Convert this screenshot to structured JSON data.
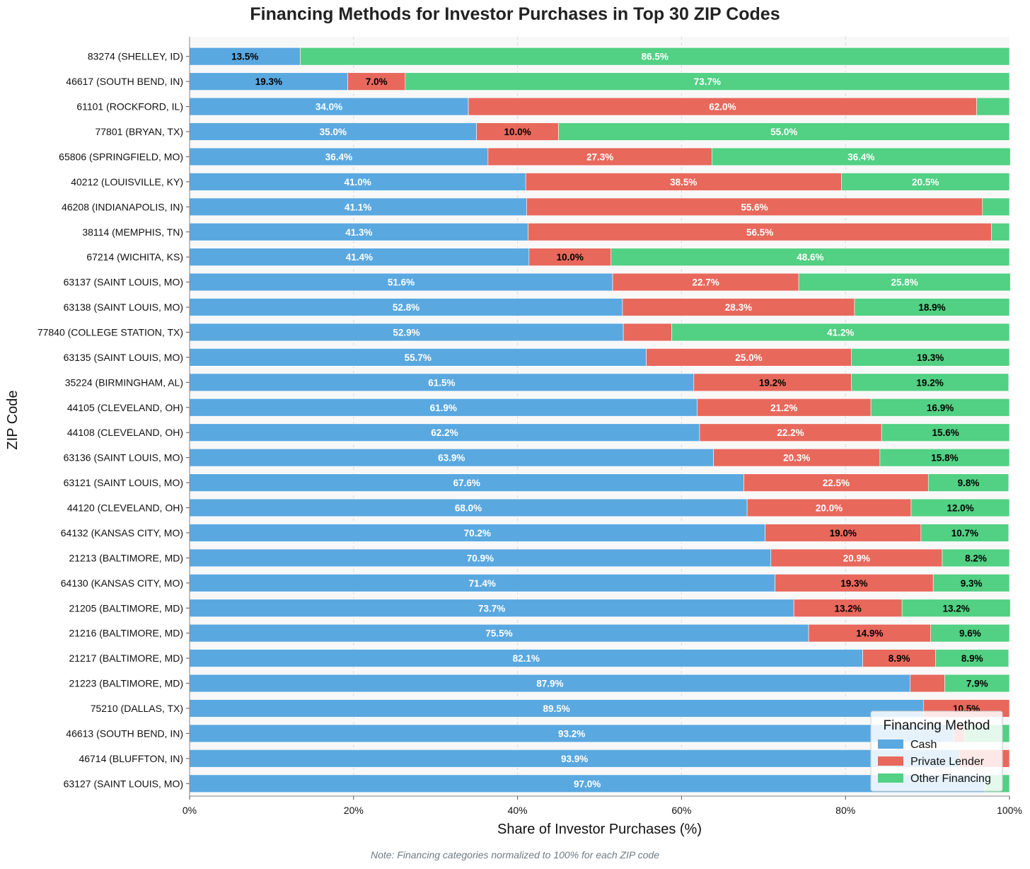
{
  "chart_data": {
    "type": "bar",
    "orientation": "horizontal",
    "stacked": true,
    "title": "Financing Methods for Investor Purchases in Top 30 ZIP Codes",
    "xlabel": "Share of Investor Purchases (%)",
    "ylabel": "ZIP Code",
    "xlim": [
      0,
      100
    ],
    "x_ticks": [
      "0%",
      "20%",
      "40%",
      "60%",
      "80%",
      "100%"
    ],
    "grid": true,
    "legend": {
      "title": "Financing Method",
      "placement": "bottom-right"
    },
    "note": "Note: Financing categories normalized to 100% for each ZIP code",
    "categories": [
      "83274 (SHELLEY, ID)",
      "46617 (SOUTH BEND, IN)",
      "61101 (ROCKFORD, IL)",
      "77801 (BRYAN, TX)",
      "65806 (SPRINGFIELD, MO)",
      "40212 (LOUISVILLE, KY)",
      "46208 (INDIANAPOLIS, IN)",
      "38114 (MEMPHIS, TN)",
      "67214 (WICHITA, KS)",
      "63137 (SAINT LOUIS, MO)",
      "63138 (SAINT LOUIS, MO)",
      "77840 (COLLEGE STATION, TX)",
      "63135 (SAINT LOUIS, MO)",
      "35224 (BIRMINGHAM, AL)",
      "44105 (CLEVELAND, OH)",
      "44108 (CLEVELAND, OH)",
      "63136 (SAINT LOUIS, MO)",
      "63121 (SAINT LOUIS, MO)",
      "44120 (CLEVELAND, OH)",
      "64132 (KANSAS CITY, MO)",
      "21213 (BALTIMORE, MD)",
      "64130 (KANSAS CITY, MO)",
      "21205 (BALTIMORE, MD)",
      "21216 (BALTIMORE, MD)",
      "21217 (BALTIMORE, MD)",
      "21223 (BALTIMORE, MD)",
      "75210 (DALLAS, TX)",
      "46613 (SOUTH BEND, IN)",
      "46714 (BLUFFTON, IN)",
      "63127 (SAINT LOUIS, MO)"
    ],
    "series": [
      {
        "name": "Cash",
        "color": "#5aa8e0",
        "values": [
          13.5,
          19.3,
          34.0,
          35.0,
          36.4,
          41.0,
          41.1,
          41.3,
          41.4,
          51.6,
          52.8,
          52.9,
          55.7,
          61.5,
          61.9,
          62.2,
          63.9,
          67.6,
          68.0,
          70.2,
          70.9,
          71.4,
          73.7,
          75.5,
          82.1,
          87.9,
          89.5,
          93.2,
          93.9,
          97.0
        ]
      },
      {
        "name": "Private Lender",
        "color": "#e8685c",
        "values": [
          0.0,
          7.0,
          62.0,
          10.0,
          27.3,
          38.5,
          55.6,
          56.5,
          10.0,
          22.7,
          28.3,
          5.9,
          25.0,
          19.2,
          21.2,
          22.2,
          20.3,
          22.5,
          20.0,
          19.0,
          20.9,
          19.3,
          13.2,
          14.9,
          8.9,
          4.2,
          10.5,
          1.3,
          6.1,
          0.0
        ]
      },
      {
        "name": "Other Financing",
        "color": "#52d083",
        "values": [
          86.5,
          73.7,
          4.0,
          55.0,
          36.4,
          20.5,
          3.3,
          2.2,
          48.6,
          25.8,
          18.9,
          41.2,
          19.3,
          19.2,
          16.9,
          15.6,
          15.8,
          9.8,
          12.0,
          10.7,
          8.2,
          9.3,
          13.2,
          9.6,
          8.9,
          7.9,
          0.0,
          5.5,
          0.0,
          3.0
        ]
      }
    ]
  }
}
